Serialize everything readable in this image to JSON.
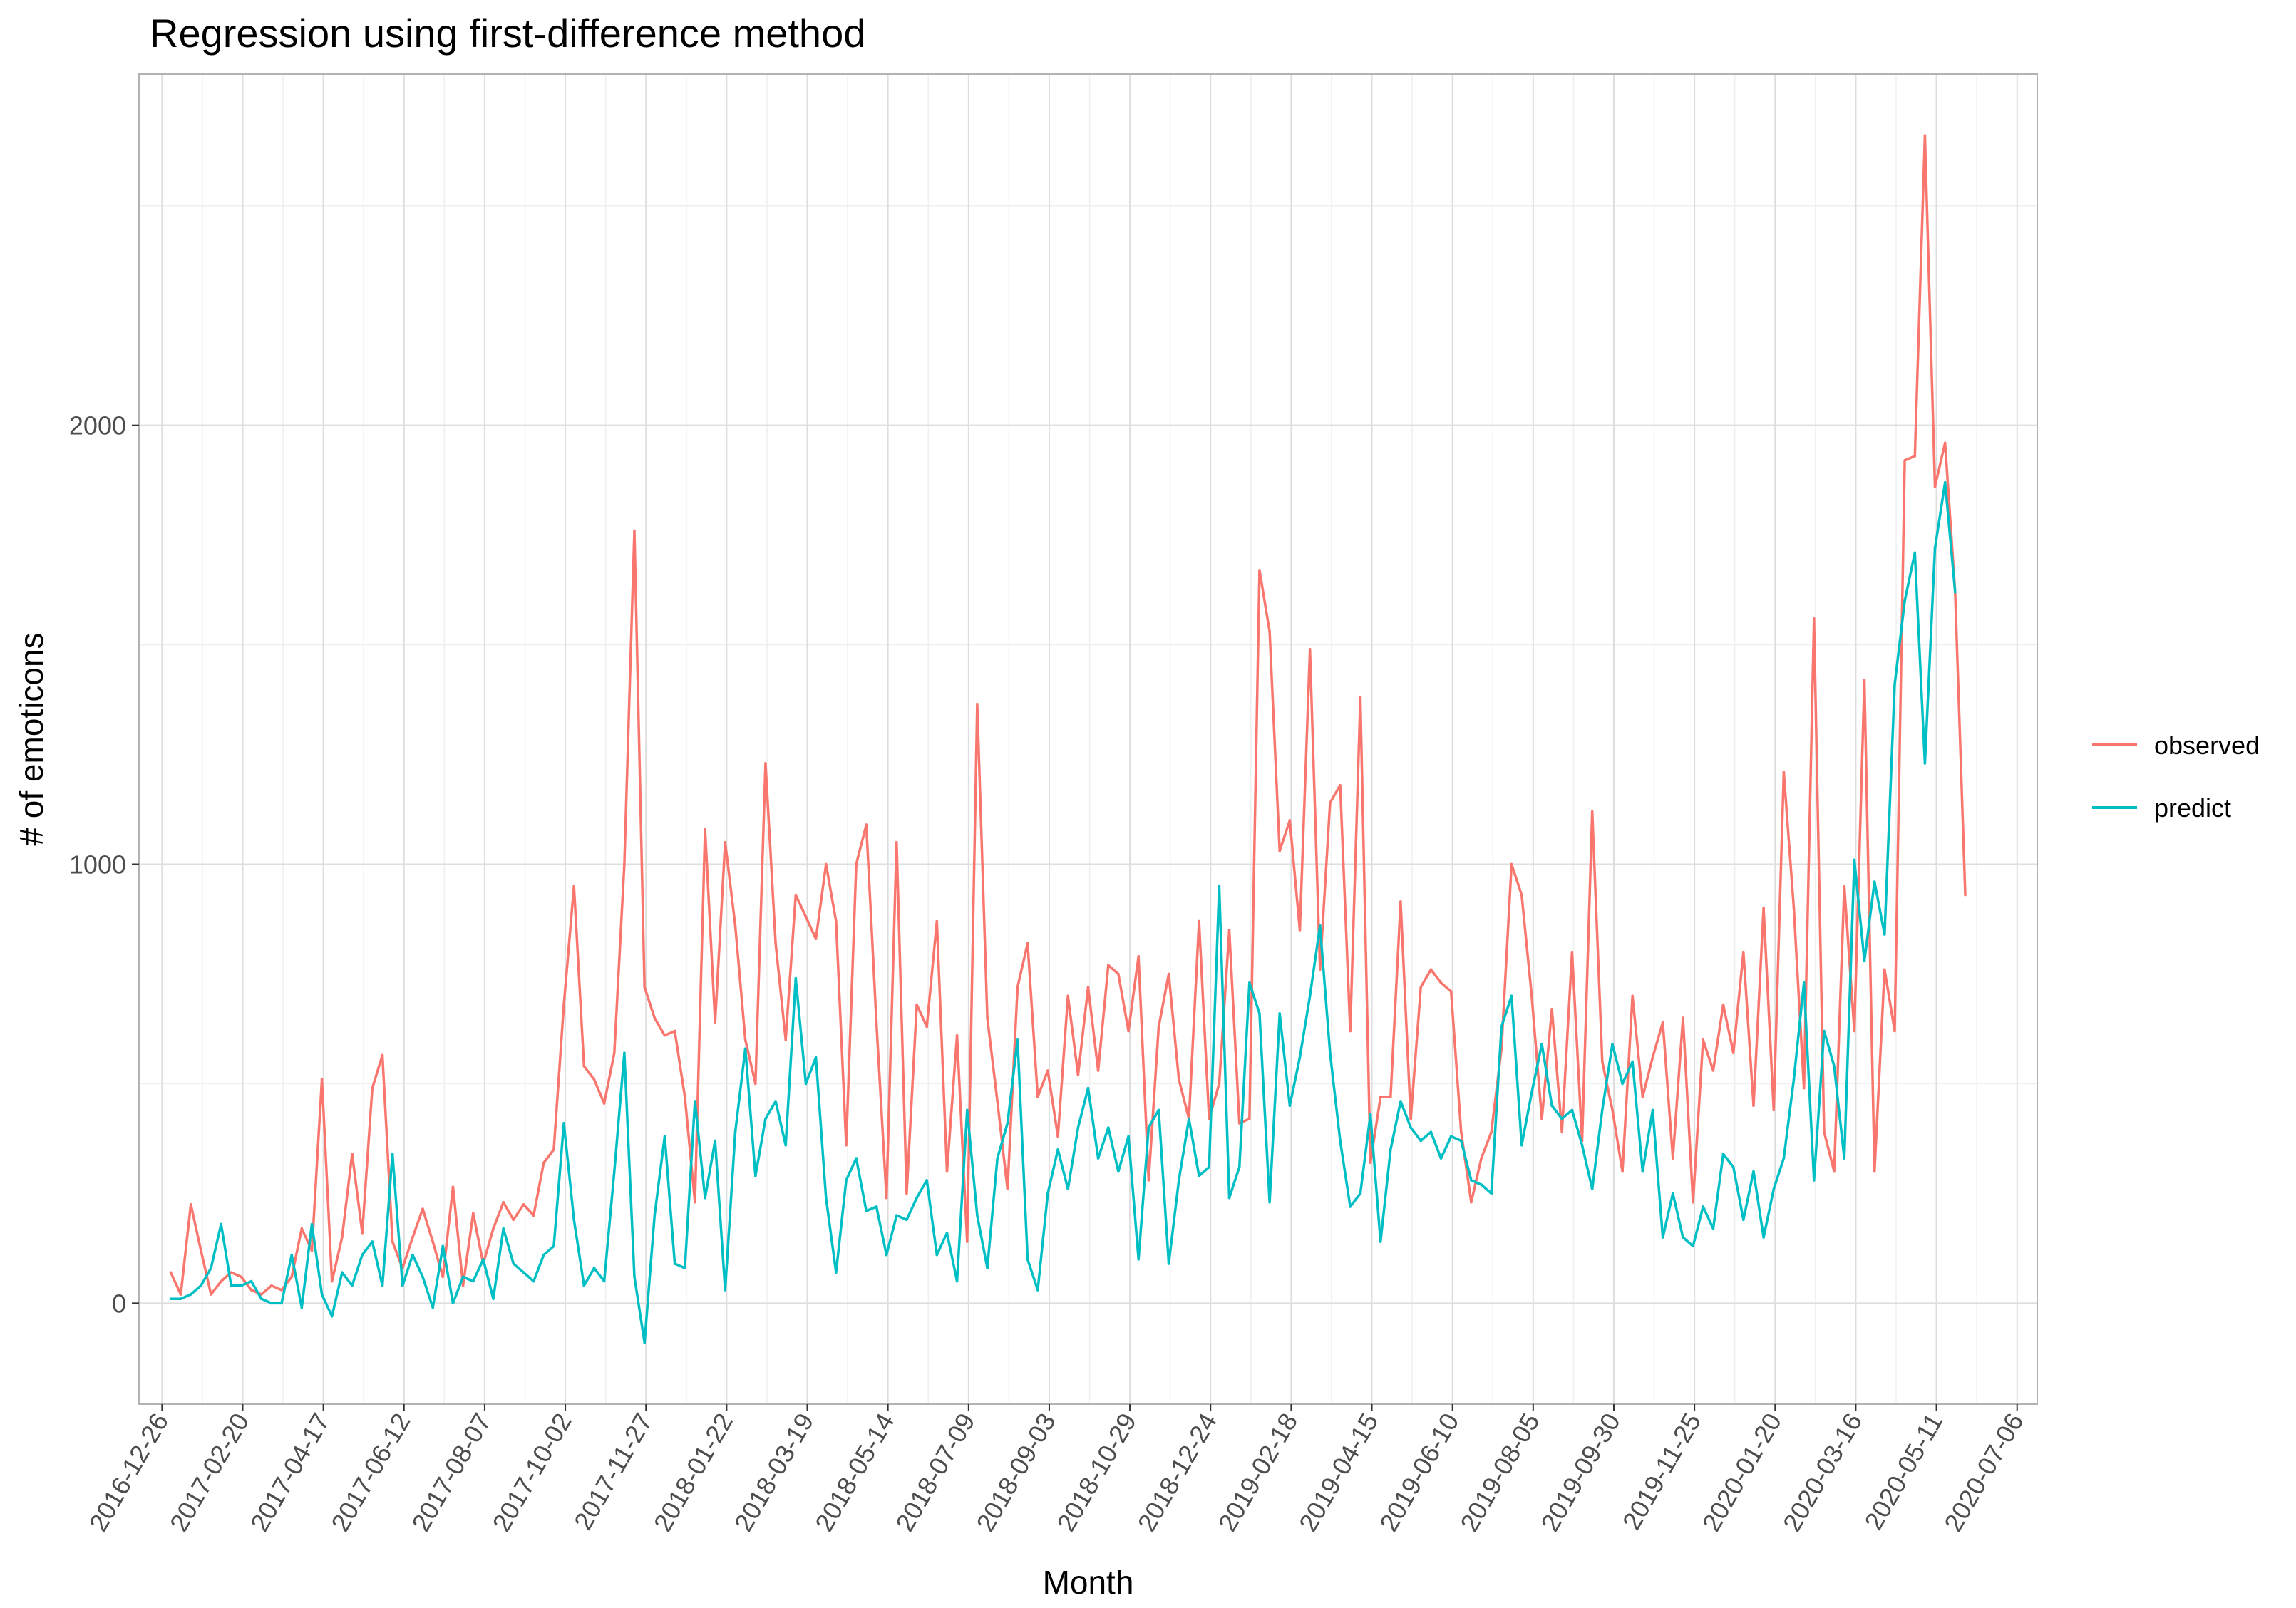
{
  "chart_data": {
    "type": "line",
    "title": "Regression using first-difference method",
    "xlabel": "Month",
    "ylabel": "# of emoticons",
    "xlim": [
      "2016-12-10",
      "2020-07-20"
    ],
    "ylim": [
      -230,
      2800
    ],
    "x_ticks": [
      "2016-12-26",
      "2017-02-20",
      "2017-04-17",
      "2017-06-12",
      "2017-08-07",
      "2017-10-02",
      "2017-11-27",
      "2018-01-22",
      "2018-03-19",
      "2018-05-14",
      "2018-07-09",
      "2018-09-03",
      "2018-10-29",
      "2018-12-24",
      "2019-02-18",
      "2019-04-15",
      "2019-06-10",
      "2019-08-05",
      "2019-09-30",
      "2019-11-25",
      "2020-01-20",
      "2020-03-16",
      "2020-05-11",
      "2020-07-06"
    ],
    "y_ticks": [
      0,
      1000,
      2000
    ],
    "grid": true,
    "legend": "right",
    "x_start": "2017-01-01",
    "x_step_days": 7,
    "series": [
      {
        "name": "observed",
        "color": "#F8766D",
        "values": [
          70,
          20,
          225,
          120,
          20,
          50,
          70,
          60,
          30,
          20,
          40,
          30,
          60,
          170,
          120,
          510,
          50,
          150,
          340,
          160,
          490,
          565,
          140,
          80,
          150,
          215,
          140,
          60,
          265,
          40,
          205,
          90,
          170,
          230,
          190,
          225,
          200,
          320,
          350,
          680,
          950,
          540,
          510,
          455,
          570,
          1000,
          1760,
          720,
          650,
          610,
          620,
          470,
          230,
          1080,
          640,
          1050,
          860,
          600,
          500,
          1230,
          820,
          600,
          930,
          880,
          830,
          1000,
          870,
          360,
          1000,
          1090,
          640,
          240,
          1050,
          250,
          680,
          630,
          870,
          300,
          610,
          140,
          1365,
          650,
          460,
          260,
          720,
          820,
          470,
          530,
          380,
          700,
          520,
          720,
          530,
          770,
          750,
          620,
          790,
          280,
          630,
          750,
          510,
          420,
          870,
          420,
          500,
          850,
          410,
          420,
          1670,
          1530,
          1030,
          1100,
          850,
          1490,
          760,
          1140,
          1180,
          620,
          1380,
          320,
          470,
          470,
          915,
          420,
          720,
          760,
          730,
          710,
          390,
          230,
          330,
          390,
          580,
          1000,
          930,
          700,
          420,
          670,
          390,
          800,
          370,
          1120,
          550,
          440,
          300,
          700,
          470,
          560,
          640,
          330,
          650,
          230,
          600,
          530,
          680,
          570,
          800,
          450,
          900,
          440,
          1210,
          900,
          490,
          1560,
          390,
          300,
          950,
          620,
          1420,
          300,
          760,
          620,
          1920,
          1930,
          2660,
          1860,
          1960,
          1620,
          930
        ]
      },
      {
        "name": "predict",
        "color": "#00BFC4",
        "values": [
          10,
          10,
          20,
          40,
          80,
          180,
          40,
          40,
          50,
          10,
          0,
          0,
          110,
          -10,
          180,
          20,
          -30,
          70,
          40,
          110,
          140,
          40,
          340,
          40,
          110,
          60,
          -10,
          130,
          0,
          60,
          50,
          100,
          10,
          170,
          90,
          70,
          50,
          110,
          130,
          410,
          190,
          40,
          80,
          50,
          300,
          570,
          60,
          -90,
          200,
          380,
          90,
          80,
          460,
          240,
          370,
          30,
          390,
          580,
          290,
          420,
          460,
          360,
          740,
          500,
          560,
          240,
          70,
          280,
          330,
          210,
          220,
          110,
          200,
          190,
          240,
          280,
          110,
          160,
          50,
          440,
          200,
          80,
          330,
          410,
          600,
          100,
          30,
          250,
          350,
          260,
          400,
          490,
          330,
          400,
          300,
          380,
          100,
          400,
          440,
          90,
          280,
          420,
          290,
          310,
          950,
          240,
          310,
          730,
          660,
          230,
          660,
          450,
          560,
          700,
          860,
          570,
          370,
          220,
          250,
          430,
          140,
          350,
          460,
          400,
          370,
          390,
          330,
          380,
          370,
          280,
          270,
          250,
          630,
          700,
          360,
          480,
          590,
          450,
          420,
          440,
          360,
          260,
          440,
          590,
          500,
          550,
          300,
          440,
          150,
          250,
          150,
          130,
          220,
          170,
          340,
          310,
          190,
          300,
          150,
          260,
          330,
          510,
          730,
          280,
          620,
          540,
          330,
          1010,
          780,
          960,
          840,
          1410,
          1600,
          1710,
          1230,
          1720,
          1870,
          1620
        ]
      }
    ]
  }
}
